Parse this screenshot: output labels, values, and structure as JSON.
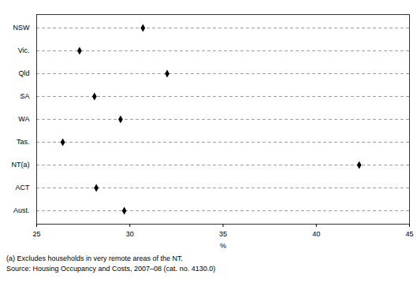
{
  "chart_data": {
    "type": "dot",
    "orientation": "horizontal",
    "categories": [
      "NSW",
      "Vic.",
      "Qld",
      "SA",
      "WA",
      "Tas.",
      "NT(a)",
      "ACT",
      "Aust."
    ],
    "values": [
      30.7,
      27.3,
      32.0,
      28.1,
      29.5,
      26.4,
      42.3,
      28.2,
      29.7
    ],
    "color": "#000000",
    "marker": "diamond",
    "grid": true,
    "xlabel": "%",
    "xlim": [
      25,
      45
    ],
    "xticks": [
      25,
      30,
      35,
      40,
      45
    ],
    "footnotes": [
      "(a) Excludes households in very remote areas of the NT.",
      "Source: Housing Occupancy and Costs, 2007–08 (cat. no. 4130.0)"
    ]
  }
}
